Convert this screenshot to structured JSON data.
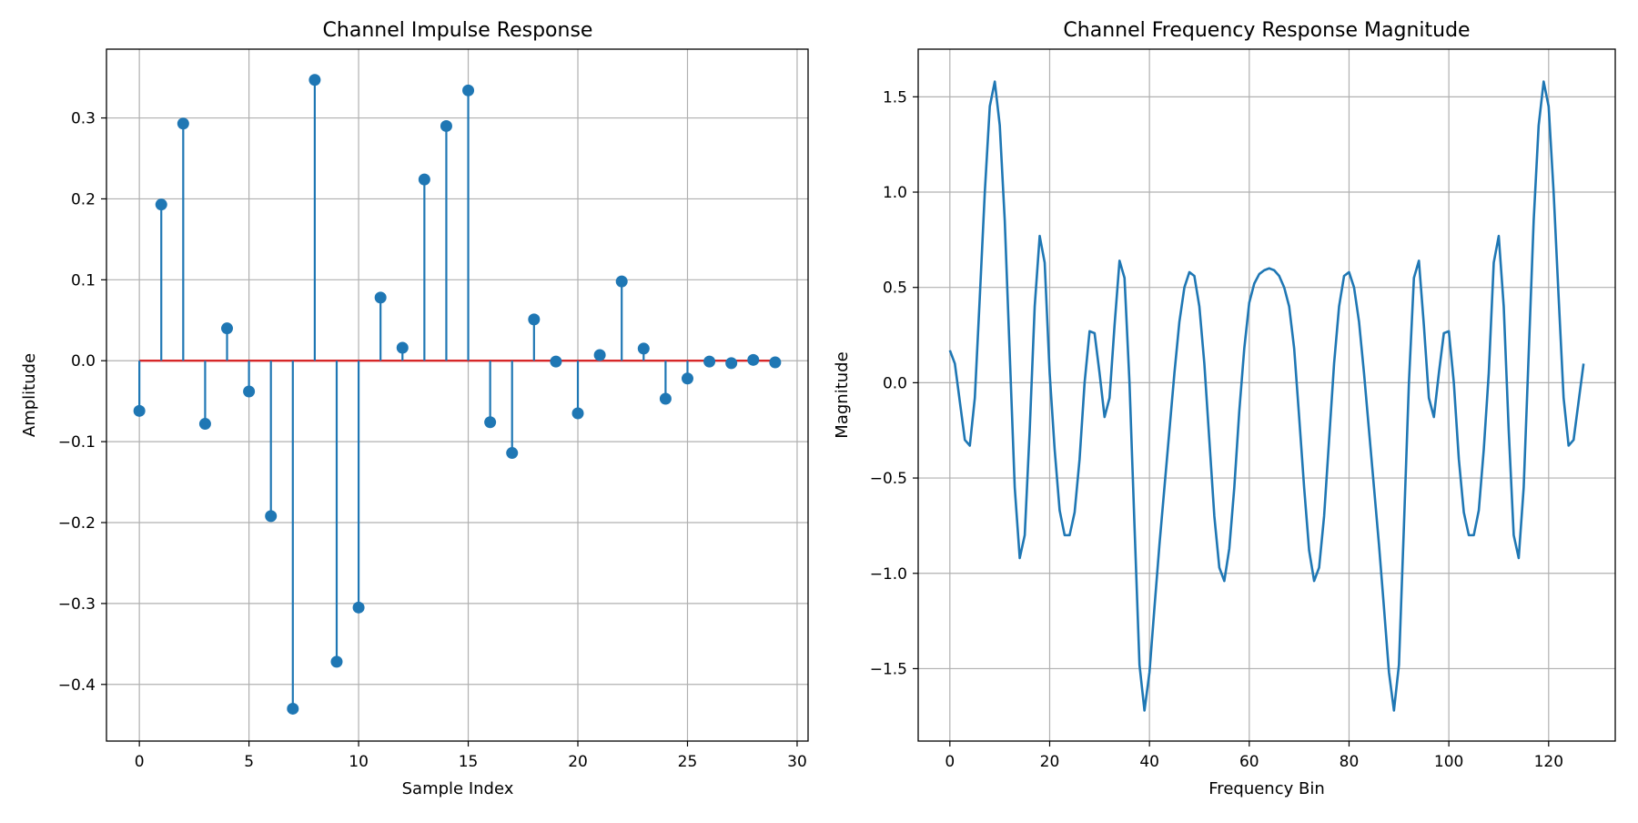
{
  "chart_data": [
    {
      "type": "stem",
      "title": "Channel Impulse Response",
      "xlabel": "Sample Index",
      "ylabel": "Amplitude",
      "xlim": [
        -1.5,
        30.5
      ],
      "ylim": [
        -0.47,
        0.385
      ],
      "xticks": [
        0,
        5,
        10,
        15,
        20,
        25,
        30
      ],
      "yticks": [
        -0.4,
        -0.3,
        -0.2,
        -0.1,
        0.0,
        0.1,
        0.2,
        0.3
      ],
      "xtick_labels": [
        "0",
        "5",
        "10",
        "15",
        "20",
        "25",
        "30"
      ],
      "ytick_labels": [
        "−0.4",
        "−0.3",
        "−0.2",
        "−0.1",
        "0.0",
        "0.1",
        "0.2",
        "0.3"
      ],
      "grid": true,
      "colors": {
        "stem": "#1f77b4",
        "baseline": "#d62728"
      },
      "x": [
        0,
        1,
        2,
        3,
        4,
        5,
        6,
        7,
        8,
        9,
        10,
        11,
        12,
        13,
        14,
        15,
        16,
        17,
        18,
        19,
        20,
        21,
        22,
        23,
        24,
        25,
        26,
        27,
        28,
        29
      ],
      "values": [
        -0.062,
        0.193,
        0.293,
        -0.078,
        0.04,
        -0.038,
        -0.192,
        -0.43,
        0.347,
        -0.372,
        -0.305,
        0.078,
        0.016,
        0.224,
        0.29,
        0.334,
        -0.076,
        -0.114,
        0.051,
        -0.001,
        -0.065,
        0.007,
        0.098,
        0.015,
        -0.047,
        -0.022,
        -0.001,
        -0.003,
        0.001,
        -0.002
      ]
    },
    {
      "type": "line",
      "title": "Channel Frequency Response Magnitude",
      "xlabel": "Frequency Bin",
      "ylabel": "Magnitude",
      "xlim": [
        -6.35,
        133.35
      ],
      "ylim": [
        -1.88,
        1.75
      ],
      "xticks": [
        0,
        20,
        40,
        60,
        80,
        100,
        120
      ],
      "yticks": [
        -1.5,
        -1.0,
        -0.5,
        0.0,
        0.5,
        1.0,
        1.5
      ],
      "xtick_labels": [
        "0",
        "20",
        "40",
        "60",
        "80",
        "100",
        "120"
      ],
      "ytick_labels": [
        "−1.5",
        "−1.0",
        "−0.5",
        "0.0",
        "0.5",
        "1.0",
        "1.5"
      ],
      "grid": true,
      "colors": {
        "line": "#1f77b4"
      },
      "x": [
        0,
        1,
        2,
        3,
        4,
        5,
        6,
        7,
        8,
        9,
        10,
        11,
        12,
        13,
        14,
        15,
        16,
        17,
        18,
        19,
        20,
        21,
        22,
        23,
        24,
        25,
        26,
        27,
        28,
        29,
        30,
        31,
        32,
        33,
        34,
        35,
        36,
        37,
        38,
        39,
        40,
        41,
        42,
        43,
        44,
        45,
        46,
        47,
        48,
        49,
        50,
        51,
        52,
        53,
        54,
        55,
        56,
        57,
        58,
        59,
        60,
        61,
        62,
        63,
        64,
        65,
        66,
        67,
        68,
        69,
        70,
        71,
        72,
        73,
        74,
        75,
        76,
        77,
        78,
        79,
        80,
        81,
        82,
        83,
        84,
        85,
        86,
        87,
        88,
        89,
        90,
        91,
        92,
        93,
        94,
        95,
        96,
        97,
        98,
        99,
        100,
        101,
        102,
        103,
        104,
        105,
        106,
        107,
        108,
        109,
        110,
        111,
        112,
        113,
        114,
        115,
        116,
        117,
        118,
        119,
        120,
        121,
        122,
        123,
        124,
        125,
        126,
        127
      ],
      "values": [
        0.17,
        0.1,
        -0.1,
        -0.3,
        -0.33,
        -0.08,
        0.45,
        1.0,
        1.45,
        1.58,
        1.35,
        0.85,
        0.15,
        -0.55,
        -0.92,
        -0.8,
        -0.25,
        0.4,
        0.77,
        0.63,
        0.05,
        -0.35,
        -0.67,
        -0.8,
        -0.8,
        -0.68,
        -0.4,
        0.0,
        0.27,
        0.26,
        0.05,
        -0.18,
        -0.08,
        0.3,
        0.64,
        0.55,
        0.0,
        -0.75,
        -1.48,
        -1.72,
        -1.52,
        -1.18,
        -0.85,
        -0.55,
        -0.25,
        0.05,
        0.32,
        0.5,
        0.58,
        0.56,
        0.4,
        0.1,
        -0.3,
        -0.7,
        -0.97,
        -1.04,
        -0.87,
        -0.55,
        -0.15,
        0.18,
        0.42,
        0.52,
        0.57,
        0.59,
        0.6,
        0.59,
        0.56,
        0.5,
        0.4,
        0.18,
        -0.18,
        -0.55,
        -0.88,
        -1.04,
        -0.97,
        -0.7,
        -0.3,
        0.1,
        0.4,
        0.56,
        0.58,
        0.5,
        0.32,
        0.05,
        -0.25,
        -0.55,
        -0.85,
        -1.18,
        -1.52,
        -1.72,
        -1.48,
        -0.75,
        0.0,
        0.55,
        0.64,
        0.3,
        -0.08,
        -0.18,
        0.05,
        0.26,
        0.27,
        0.0,
        -0.4,
        -0.68,
        -0.8,
        -0.8,
        -0.67,
        -0.35,
        0.05,
        0.63,
        0.77,
        0.4,
        -0.25,
        -0.8,
        -0.92,
        -0.55,
        0.15,
        0.85,
        1.35,
        1.58,
        1.45,
        1.0,
        0.45,
        -0.08,
        -0.33,
        -0.3,
        -0.1,
        0.1
      ]
    }
  ]
}
